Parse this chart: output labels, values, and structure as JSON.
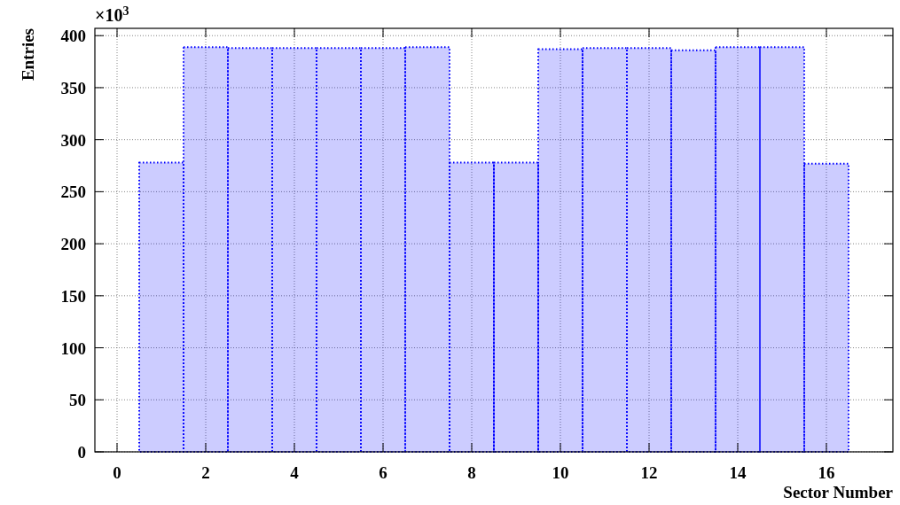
{
  "chart_data": {
    "type": "histogram",
    "xlabel": "Sector Number",
    "ylabel": "Entries",
    "annotations": [
      "×10$^{3}$"
    ],
    "bins": [
      -0.5,
      0.5,
      1.5,
      2.5,
      3.5,
      4.5,
      5.5,
      6.5,
      7.5,
      8.5,
      9.5,
      10.5,
      11.5,
      12.5,
      13.5,
      14.5,
      15.5,
      16.5,
      17.5
    ],
    "values": [
      0,
      278,
      389,
      388,
      388,
      388,
      388,
      389,
      278,
      278,
      387,
      388,
      388,
      386,
      389,
      389,
      277,
      0
    ],
    "color": "#0000ff",
    "line_style": "dotted",
    "xlim": [
      -0.5,
      17.5
    ],
    "xticks": [
      0,
      2,
      4,
      6,
      8,
      10,
      12,
      14,
      16
    ],
    "ylim": [
      0,
      407
    ],
    "yticks": [
      0,
      50,
      100,
      150,
      200,
      250,
      300,
      350,
      400
    ],
    "grid": true
  }
}
